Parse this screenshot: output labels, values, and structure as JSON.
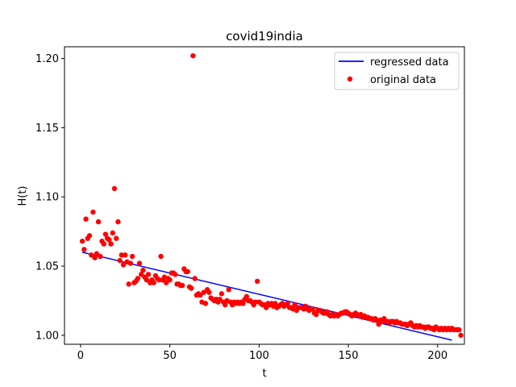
{
  "chart_data": {
    "type": "scatter",
    "title": "covid19india",
    "xlabel": "t",
    "ylabel": "H(t)",
    "xlim": [
      -9,
      215
    ],
    "ylim": [
      0.9935,
      1.2085
    ],
    "xticks": [
      0,
      50,
      100,
      150,
      200
    ],
    "xtick_labels": [
      "0",
      "50",
      "100",
      "150",
      "200"
    ],
    "yticks": [
      1.0,
      1.05,
      1.1,
      1.15,
      1.2
    ],
    "ytick_labels": [
      "1.00",
      "1.05",
      "1.10",
      "1.15",
      "1.20"
    ],
    "grid": false,
    "legend_position": "top-right",
    "colors": {
      "regressed": "#0000ff",
      "original": "#ff0000"
    },
    "series": [
      {
        "name": "regressed data",
        "kind": "line",
        "x": [
          1,
          208
        ],
        "y": [
          1.06,
          0.9965
        ]
      },
      {
        "name": "original data",
        "kind": "scatter",
        "points": [
          [
            1,
            1.068
          ],
          [
            2,
            1.062
          ],
          [
            3,
            1.084
          ],
          [
            4,
            1.07
          ],
          [
            5,
            1.072
          ],
          [
            6,
            1.058
          ],
          [
            7,
            1.089
          ],
          [
            8,
            1.056
          ],
          [
            9,
            1.059
          ],
          [
            10,
            1.082
          ],
          [
            11,
            1.057
          ],
          [
            12,
            1.068
          ],
          [
            13,
            1.066
          ],
          [
            14,
            1.073
          ],
          [
            15,
            1.07
          ],
          [
            16,
            1.069
          ],
          [
            17,
            1.066
          ],
          [
            18,
            1.074
          ],
          [
            19,
            1.106
          ],
          [
            20,
            1.07
          ],
          [
            21,
            1.082
          ],
          [
            22,
            1.054
          ],
          [
            23,
            1.058
          ],
          [
            24,
            1.051
          ],
          [
            25,
            1.058
          ],
          [
            26,
            1.053
          ],
          [
            27,
            1.037
          ],
          [
            28,
            1.052
          ],
          [
            29,
            1.057
          ],
          [
            30,
            1.038
          ],
          [
            31,
            1.039
          ],
          [
            32,
            1.041
          ],
          [
            33,
            1.052
          ],
          [
            34,
            1.044
          ],
          [
            35,
            1.047
          ],
          [
            36,
            1.042
          ],
          [
            37,
            1.04
          ],
          [
            38,
            1.044
          ],
          [
            39,
            1.038
          ],
          [
            40,
            1.04
          ],
          [
            41,
            1.038
          ],
          [
            42,
            1.043
          ],
          [
            43,
            1.041
          ],
          [
            44,
            1.04
          ],
          [
            45,
            1.057
          ],
          [
            46,
            1.04
          ],
          [
            47,
            1.042
          ],
          [
            48,
            1.038
          ],
          [
            49,
            1.041
          ],
          [
            50,
            1.04
          ],
          [
            51,
            1.045
          ],
          [
            52,
            1.045
          ],
          [
            53,
            1.044
          ],
          [
            54,
            1.037
          ],
          [
            55,
            1.037
          ],
          [
            56,
            1.036
          ],
          [
            57,
            1.036
          ],
          [
            58,
            1.048
          ],
          [
            59,
            1.046
          ],
          [
            60,
            1.046
          ],
          [
            61,
            1.035
          ],
          [
            62,
            1.034
          ],
          [
            63,
            1.202
          ],
          [
            64,
            1.041
          ],
          [
            65,
            1.029
          ],
          [
            66,
            1.03
          ],
          [
            67,
            1.029
          ],
          [
            68,
            1.024
          ],
          [
            69,
            1.031
          ],
          [
            70,
            1.023
          ],
          [
            71,
            1.033
          ],
          [
            72,
            1.031
          ],
          [
            73,
            1.027
          ],
          [
            74,
            1.026
          ],
          [
            75,
            1.025
          ],
          [
            76,
            1.026
          ],
          [
            77,
            1.024
          ],
          [
            78,
            1.026
          ],
          [
            79,
            1.03
          ],
          [
            80,
            1.024
          ],
          [
            81,
            1.022
          ],
          [
            82,
            1.025
          ],
          [
            83,
            1.033
          ],
          [
            84,
            1.024
          ],
          [
            85,
            1.022
          ],
          [
            86,
            1.024
          ],
          [
            87,
            1.023
          ],
          [
            88,
            1.024
          ],
          [
            89,
            1.023
          ],
          [
            90,
            1.024
          ],
          [
            91,
            1.023
          ],
          [
            92,
            1.026
          ],
          [
            93,
            1.028
          ],
          [
            94,
            1.025
          ],
          [
            95,
            1.025
          ],
          [
            96,
            1.024
          ],
          [
            97,
            1.022
          ],
          [
            98,
            1.024
          ],
          [
            99,
            1.039
          ],
          [
            100,
            1.024
          ],
          [
            101,
            1.023
          ],
          [
            102,
            1.022
          ],
          [
            103,
            1.022
          ],
          [
            104,
            1.02
          ],
          [
            105,
            1.023
          ],
          [
            106,
            1.022
          ],
          [
            107,
            1.023
          ],
          [
            108,
            1.021
          ],
          [
            109,
            1.023
          ],
          [
            110,
            1.02
          ],
          [
            111,
            1.021
          ],
          [
            112,
            1.022
          ],
          [
            113,
            1.023
          ],
          [
            114,
            1.021
          ],
          [
            115,
            1.022
          ],
          [
            116,
            1.023
          ],
          [
            117,
            1.02
          ],
          [
            118,
            1.02
          ],
          [
            119,
            1.019
          ],
          [
            120,
            1.022
          ],
          [
            121,
            1.018
          ],
          [
            122,
            1.02
          ],
          [
            123,
            1.02
          ],
          [
            124,
            1.02
          ],
          [
            125,
            1.019
          ],
          [
            126,
            1.021
          ],
          [
            127,
            1.019
          ],
          [
            128,
            1.018
          ],
          [
            129,
            1.019
          ],
          [
            130,
            1.019
          ],
          [
            131,
            1.016
          ],
          [
            132,
            1.015
          ],
          [
            133,
            1.018
          ],
          [
            134,
            1.018
          ],
          [
            135,
            1.017
          ],
          [
            136,
            1.016
          ],
          [
            137,
            1.016
          ],
          [
            138,
            1.017
          ],
          [
            139,
            1.015
          ],
          [
            140,
            1.014
          ],
          [
            141,
            1.015
          ],
          [
            142,
            1.014
          ],
          [
            143,
            1.015
          ],
          [
            144,
            1.014
          ],
          [
            145,
            1.015
          ],
          [
            146,
            1.016
          ],
          [
            147,
            1.016
          ],
          [
            148,
            1.017
          ],
          [
            149,
            1.017
          ],
          [
            150,
            1.016
          ],
          [
            151,
            1.015
          ],
          [
            152,
            1.014
          ],
          [
            153,
            1.015
          ],
          [
            154,
            1.016
          ],
          [
            155,
            1.015
          ],
          [
            156,
            1.014
          ],
          [
            157,
            1.015
          ],
          [
            158,
            1.013
          ],
          [
            159,
            1.014
          ],
          [
            160,
            1.013
          ],
          [
            161,
            1.013
          ],
          [
            162,
            1.012
          ],
          [
            163,
            1.012
          ],
          [
            164,
            1.011
          ],
          [
            165,
            1.012
          ],
          [
            166,
            1.011
          ],
          [
            167,
            1.008
          ],
          [
            168,
            1.011
          ],
          [
            169,
            1.01
          ],
          [
            170,
            1.012
          ],
          [
            171,
            1.01
          ],
          [
            172,
            1.01
          ],
          [
            173,
            1.009
          ],
          [
            174,
            1.01
          ],
          [
            175,
            1.01
          ],
          [
            176,
            1.009
          ],
          [
            177,
            1.01
          ],
          [
            178,
            1.009
          ],
          [
            179,
            1.009
          ],
          [
            180,
            1.008
          ],
          [
            181,
            1.008
          ],
          [
            182,
            1.008
          ],
          [
            183,
            1.007
          ],
          [
            184,
            1.008
          ],
          [
            185,
            1.009
          ],
          [
            186,
            1.007
          ],
          [
            187,
            1.006
          ],
          [
            188,
            1.007
          ],
          [
            189,
            1.006
          ],
          [
            190,
            1.007
          ],
          [
            191,
            1.006
          ],
          [
            192,
            1.006
          ],
          [
            193,
            1.005
          ],
          [
            194,
            1.006
          ],
          [
            195,
            1.006
          ],
          [
            196,
            1.005
          ],
          [
            197,
            1.005
          ],
          [
            198,
            1.004
          ],
          [
            199,
            1.006
          ],
          [
            200,
            1.005
          ],
          [
            201,
            1.004
          ],
          [
            202,
            1.005
          ],
          [
            203,
            1.004
          ],
          [
            204,
            1.005
          ],
          [
            205,
            1.004
          ],
          [
            206,
            1.005
          ],
          [
            207,
            1.004
          ],
          [
            208,
            1.005
          ],
          [
            209,
            1.004
          ],
          [
            210,
            1.004
          ],
          [
            211,
            1.004
          ],
          [
            212,
            1.004
          ],
          [
            213,
            1.0
          ]
        ]
      }
    ]
  }
}
